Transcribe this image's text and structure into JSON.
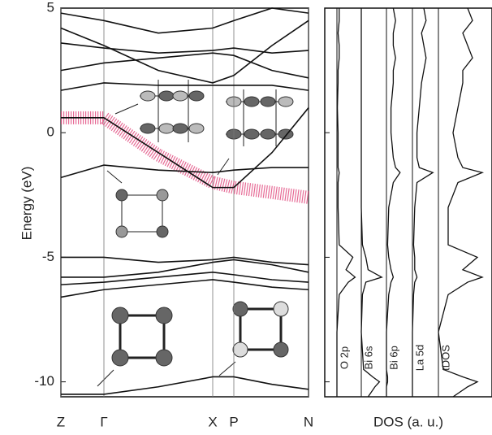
{
  "chart_data": [
    {
      "type": "line",
      "ylabel": "Energy  (eV)",
      "x": [
        0,
        0.53,
        1.2,
        1.87,
        2.13,
        2.6,
        3.05
      ],
      "xlim": [
        0,
        3.05
      ],
      "xticks": [
        {
          "value": 0,
          "label": "Z"
        },
        {
          "value": 0.53,
          "label": "Γ"
        },
        {
          "value": 1.87,
          "label": "X"
        },
        {
          "value": 2.13,
          "label": "P"
        },
        {
          "value": 3.05,
          "label": "N"
        }
      ],
      "ylim": [
        -10.6,
        5
      ],
      "yticks": [
        5,
        0,
        -5,
        -10
      ],
      "series": [
        {
          "color": "#e0457b",
          "highlight": true,
          "values": [
            0.6,
            0.6,
            -0.9,
            -2.0,
            -2.2,
            -2.4,
            -2.6
          ]
        },
        {
          "color": "#111111",
          "values": [
            0.6,
            0.6,
            -0.8,
            -2.2,
            -2.2,
            -0.8,
            1.0
          ]
        },
        {
          "color": "#111111",
          "values": [
            -1.8,
            -1.3,
            -1.5,
            -1.6,
            -1.5,
            -1.4,
            -1.4
          ]
        },
        {
          "color": "#111111",
          "values": [
            4.8,
            4.5,
            4.0,
            4.2,
            4.5,
            5.0,
            4.8
          ]
        },
        {
          "color": "#111111",
          "values": [
            4.2,
            3.5,
            2.5,
            2.0,
            2.3,
            3.5,
            4.5
          ]
        },
        {
          "color": "#111111",
          "values": [
            3.6,
            3.4,
            3.2,
            3.3,
            3.4,
            3.2,
            3.3
          ]
        },
        {
          "color": "#111111",
          "values": [
            2.5,
            2.8,
            3.0,
            3.2,
            3.1,
            2.5,
            2.2
          ]
        },
        {
          "color": "#111111",
          "values": [
            1.7,
            2.0,
            1.9,
            1.9,
            1.9,
            1.9,
            1.7
          ]
        },
        {
          "color": "#111111",
          "values": [
            -5.0,
            -5.0,
            -5.2,
            -5.1,
            -5.0,
            -5.2,
            -5.3
          ]
        },
        {
          "color": "#111111",
          "values": [
            -5.8,
            -5.8,
            -5.6,
            -5.2,
            -5.1,
            -5.3,
            -5.6
          ]
        },
        {
          "color": "#111111",
          "values": [
            -6.1,
            -6.0,
            -5.8,
            -5.6,
            -5.7,
            -5.9,
            -6.0
          ]
        },
        {
          "color": "#111111",
          "values": [
            -6.6,
            -6.3,
            -6.1,
            -5.9,
            -6.0,
            -6.2,
            -6.3
          ]
        },
        {
          "color": "#111111",
          "values": [
            -10.5,
            -10.5,
            -10.2,
            -9.8,
            -9.8,
            -10.1,
            -10.3
          ]
        }
      ]
    },
    {
      "type": "profile",
      "xlabel": "DOS  (a. u.)",
      "ylim": [
        -10.6,
        5
      ],
      "yticks": [
        5,
        0,
        -5,
        -10
      ],
      "energy": [
        -10.6,
        -10.2,
        -10,
        -9.8,
        -9.5,
        -8,
        -6.5,
        -6,
        -5.8,
        -5.5,
        -5,
        -4.5,
        -3,
        -2,
        -1.6,
        -1.4,
        -1,
        0,
        1,
        2,
        2.5,
        3,
        3.5,
        4,
        4.5,
        5
      ],
      "series": [
        {
          "name": "O 2p",
          "color": "#111111",
          "values": [
            0,
            0,
            0,
            0,
            0,
            0,
            0.1,
            0.5,
            0.8,
            0.4,
            0.7,
            0.1,
            0.05,
            0.05,
            0.1,
            0.05,
            0.05,
            0.05,
            0.02,
            0.05,
            0.05,
            0.1,
            0.1,
            0.05,
            0.1,
            0.1
          ]
        },
        {
          "name": "Bi 6s",
          "color": "#111111",
          "values": [
            0.3,
            0.6,
            0.8,
            0.5,
            0.1,
            0,
            0.05,
            0.2,
            0.9,
            0.3,
            0.2,
            0.05,
            0,
            0,
            0,
            0,
            0,
            0,
            0,
            0,
            0,
            0,
            0,
            0,
            0,
            0
          ]
        },
        {
          "name": "Bi 6p",
          "color": "#111111",
          "values": [
            0,
            0,
            0.05,
            0.05,
            0,
            0,
            0.1,
            0.2,
            0.3,
            0.2,
            0.1,
            0.05,
            0.1,
            0.3,
            0.6,
            0.4,
            0.3,
            0.2,
            0.2,
            0.3,
            0.3,
            0.4,
            0.3,
            0.3,
            0.4,
            0.3
          ]
        },
        {
          "name": "La 5d",
          "color": "#111111",
          "values": [
            0,
            0,
            0,
            0,
            0,
            0,
            0.05,
            0.1,
            0.2,
            0.1,
            0.1,
            0.05,
            0.1,
            0.2,
            0.9,
            0.3,
            0.2,
            0.2,
            0.3,
            0.4,
            0.5,
            0.6,
            0.5,
            0.4,
            0.6,
            0.5
          ]
        },
        {
          "name": "tDOS",
          "color": "#111111",
          "values": [
            0.3,
            0.6,
            0.8,
            0.5,
            0.1,
            0,
            0.2,
            0.6,
            0.9,
            0.5,
            0.8,
            0.2,
            0.2,
            0.4,
            0.9,
            0.5,
            0.4,
            0.3,
            0.4,
            0.5,
            0.5,
            0.7,
            0.6,
            0.5,
            0.7,
            0.6
          ]
        }
      ]
    }
  ]
}
